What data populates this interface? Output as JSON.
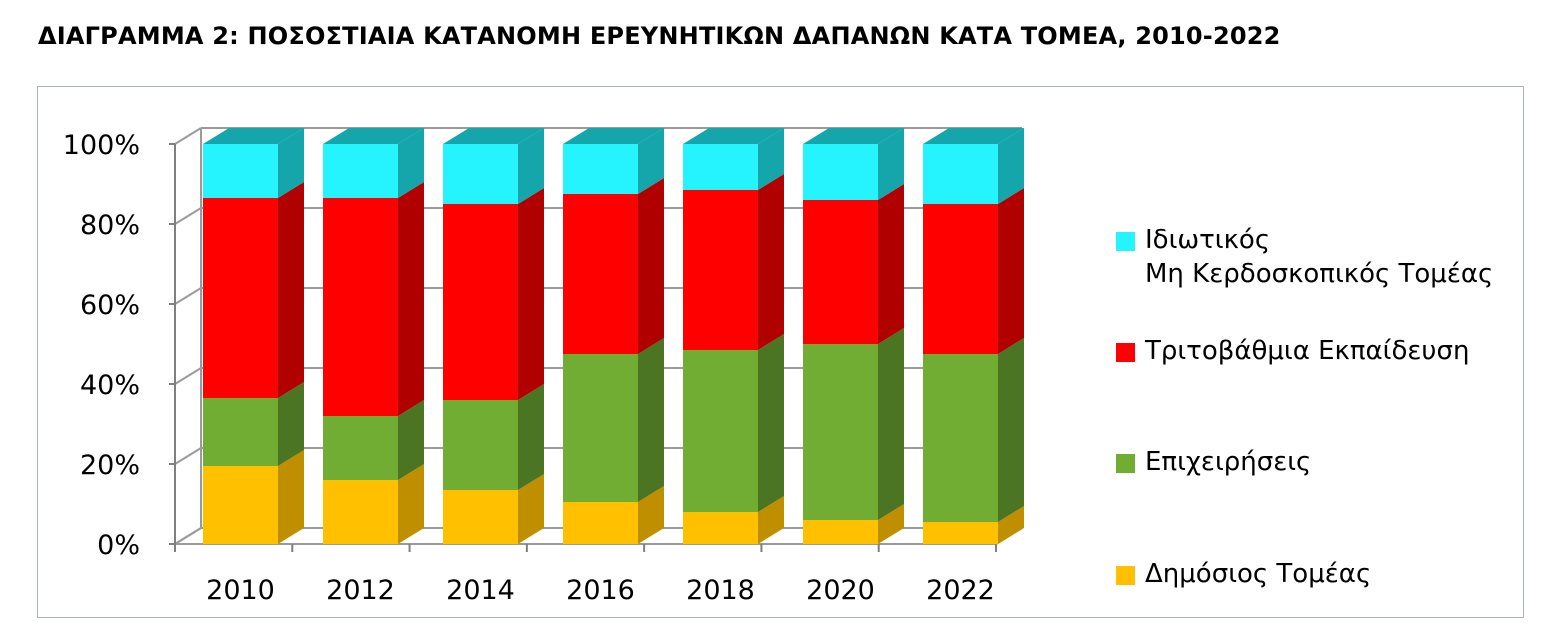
{
  "title": "ΔΙΑΓΡΑΜΜΑ 2:  ΠΟΣΟΣΤΙΑΙΑ ΚΑΤΑΝΟΜΗ ΕΡΕΥΝΗΤΙΚΩΝ ΔΑΠΑΝΩΝ ΚΑΤΑ ΤΟΜΕΑ, 2010-2022",
  "chart_data": {
    "type": "bar",
    "stacked": true,
    "three_d": true,
    "categories": [
      "2010",
      "2012",
      "2014",
      "2016",
      "2018",
      "2020",
      "2022"
    ],
    "series": [
      {
        "name": "Δημόσιος Τομέας",
        "color": "#ffc000",
        "side_color": "#bf8f00",
        "values": [
          19.5,
          16,
          13.5,
          10.5,
          8,
          6,
          5.5
        ]
      },
      {
        "name": "Επιχειρήσεις",
        "color": "#70ad32",
        "side_color": "#4b7523",
        "values": [
          17,
          16,
          22.5,
          37,
          40.5,
          44,
          42
        ]
      },
      {
        "name": "Τριτοβάθμια Εκπαίδευση",
        "color": "#ff0000",
        "side_color": "#b00000",
        "values": [
          50,
          54.5,
          49,
          40,
          40,
          36,
          37.5
        ]
      },
      {
        "name": "Ιδιωτικός Μη Κερδοσκοπικός Τομέας",
        "name_lines": [
          "Ιδιωτικός",
          "Μη Κερδοσκοπικός Τομέας"
        ],
        "color": "#25f4ff",
        "side_color": "#14a6aa",
        "values": [
          13.5,
          13.5,
          15,
          12.5,
          11.5,
          14,
          15
        ]
      }
    ],
    "y_ticks": [
      "0%",
      "20%",
      "40%",
      "60%",
      "80%",
      "100%"
    ],
    "ylim": [
      0,
      100
    ],
    "grid": true,
    "legend_position": "right"
  }
}
